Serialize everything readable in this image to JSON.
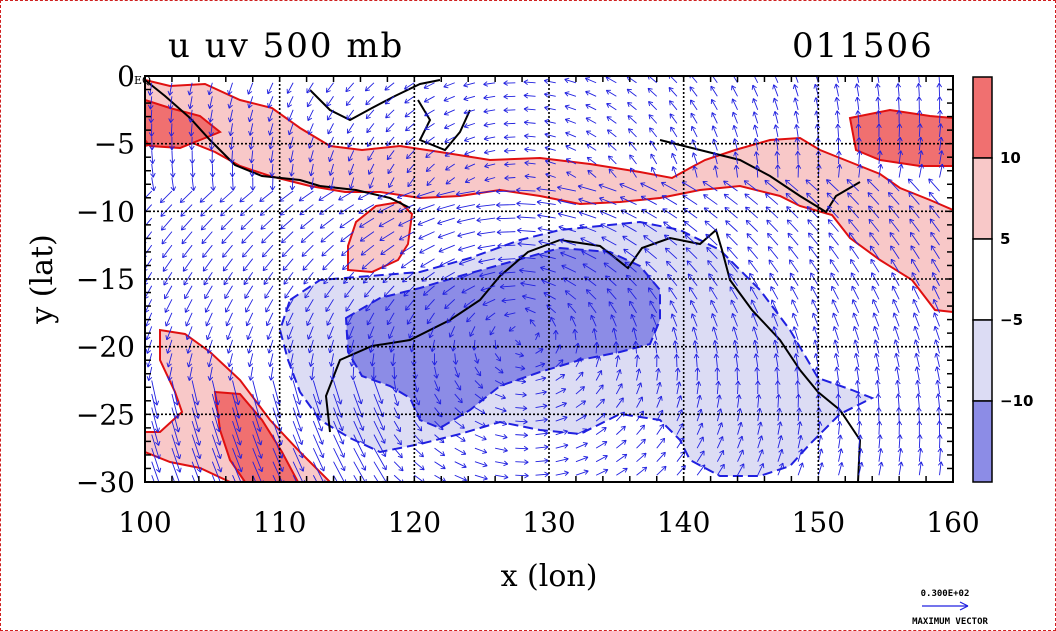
{
  "title_left": "u uv 500 mb",
  "title_right": "011506",
  "eq_label": "EQ",
  "chart_data": {
    "type": "contour-vector",
    "xlabel": "x (lon)",
    "ylabel": "y (lat)",
    "xlim": [
      100,
      160
    ],
    "ylim": [
      -30,
      0
    ],
    "xticks": [
      100,
      110,
      120,
      130,
      140,
      150,
      160
    ],
    "yticks": [
      0,
      -5,
      -10,
      -15,
      -20,
      -25,
      -30
    ],
    "xtick_labels": [
      "100",
      "110",
      "120",
      "130",
      "140",
      "150",
      "160"
    ],
    "ytick_labels": [
      "0",
      "−5",
      "−10",
      "−15",
      "−20",
      "−25",
      "−30"
    ],
    "grid": true,
    "contour_levels": [
      -10,
      -5,
      5,
      10
    ],
    "colorbar": {
      "labels": [
        "10",
        "5",
        "−5",
        "−10"
      ],
      "values": [
        10,
        5,
        -5,
        -10
      ],
      "colors": [
        "#f07070",
        "#f8c8c8",
        "#ffffff",
        "#dcdcf4",
        "#8c8ce6"
      ]
    },
    "reference_vector": {
      "value_label": "0.300E+02",
      "caption": "MAXIMUM VECTOR",
      "magnitude": 30
    },
    "colors": {
      "positive_strong": "#f07070",
      "positive_weak": "#f8c8c8",
      "negative_weak": "#dcdcf4",
      "negative_strong": "#8c8ce6",
      "positive_contour": "#e01010",
      "negative_contour": "#2020e0",
      "vector": "#2020e0",
      "coast": "#000000"
    }
  }
}
